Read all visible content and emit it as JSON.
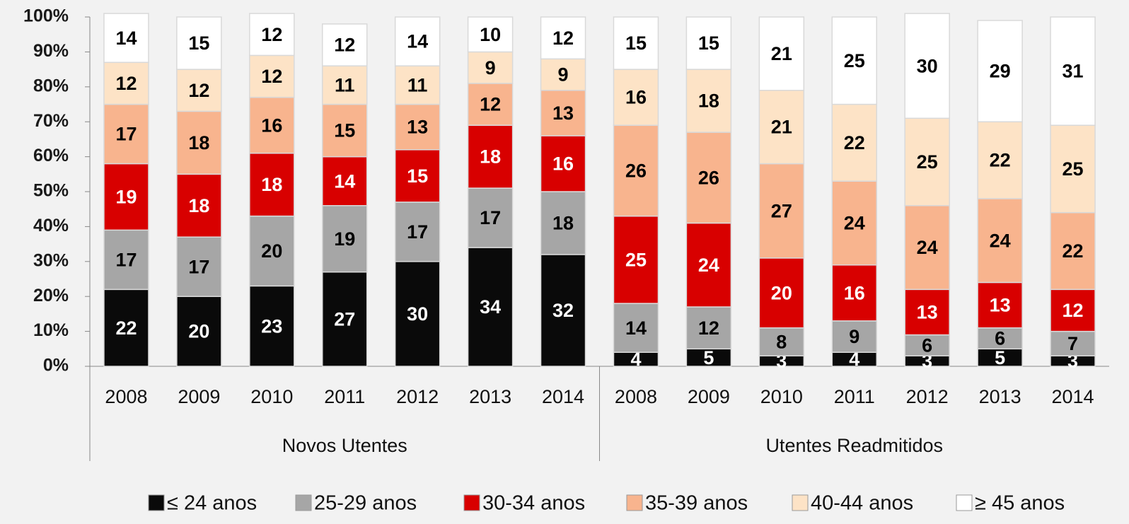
{
  "chart_data": {
    "type": "stacked_bar",
    "groups": [
      {
        "name": "Novos Utentes",
        "categories": [
          "2008",
          "2009",
          "2010",
          "2011",
          "2012",
          "2013",
          "2014"
        ]
      },
      {
        "name": "Utentes Readmitidos",
        "categories": [
          "2008",
          "2009",
          "2010",
          "2011",
          "2012",
          "2013",
          "2014"
        ]
      }
    ],
    "series": [
      {
        "name": "≤ 24 anos",
        "color": "#0a0a0a",
        "values": [
          22,
          20,
          23,
          27,
          30,
          34,
          32,
          4,
          5,
          3,
          4,
          3,
          5,
          3
        ]
      },
      {
        "name": "25-29 anos",
        "color": "#a6a6a6",
        "values": [
          17,
          17,
          20,
          19,
          17,
          17,
          18,
          14,
          12,
          8,
          9,
          6,
          6,
          7
        ]
      },
      {
        "name": "30-34 anos",
        "color": "#d80000",
        "values": [
          19,
          18,
          18,
          14,
          15,
          18,
          16,
          25,
          24,
          20,
          16,
          13,
          13,
          12
        ]
      },
      {
        "name": "35-39 anos",
        "color": "#f8b48e",
        "values": [
          17,
          18,
          16,
          15,
          13,
          12,
          13,
          26,
          26,
          27,
          24,
          24,
          24,
          22
        ]
      },
      {
        "name": "40-44 anos",
        "color": "#fde3c6",
        "values": [
          12,
          12,
          12,
          11,
          11,
          9,
          9,
          16,
          18,
          21,
          22,
          25,
          22,
          25
        ]
      },
      {
        "name": "≥ 45 anos",
        "color": "#ffffff",
        "values": [
          14,
          15,
          12,
          12,
          14,
          10,
          12,
          15,
          15,
          21,
          25,
          30,
          29,
          31
        ]
      }
    ],
    "ylim": [
      0,
      100
    ],
    "yticks": [
      {
        "value": 0,
        "label": "0%"
      },
      {
        "value": 10,
        "label": "10%"
      },
      {
        "value": 20,
        "label": "20%"
      },
      {
        "value": 30,
        "label": "30%"
      },
      {
        "value": 40,
        "label": "40%"
      },
      {
        "value": 50,
        "label": "50%"
      },
      {
        "value": 60,
        "label": "60%"
      },
      {
        "value": 70,
        "label": "70%"
      },
      {
        "value": 80,
        "label": "80%"
      },
      {
        "value": 90,
        "label": "90%"
      },
      {
        "value": 100,
        "label": "100%"
      }
    ],
    "legend": "bottom"
  }
}
